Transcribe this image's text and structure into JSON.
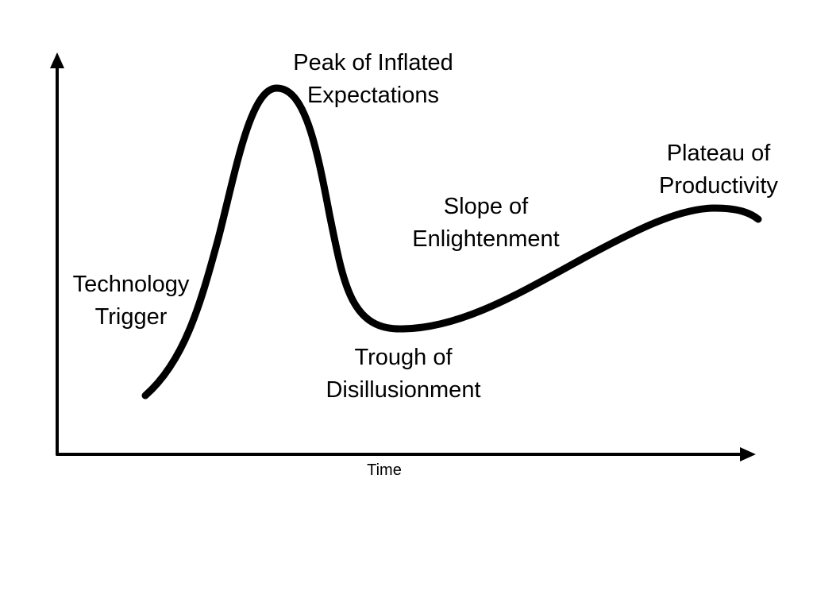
{
  "colors": {
    "background": "#ffffff",
    "ink": "#000000"
  },
  "x_axis": {
    "label": "Time"
  },
  "phases": [
    {
      "line1": "Technology",
      "line2": "Trigger"
    },
    {
      "line1": "Peak of Inflated",
      "line2": "Expectations"
    },
    {
      "line1": "Trough of",
      "line2": "Disillusionment"
    },
    {
      "line1": "Slope of",
      "line2": "Enlightenment"
    },
    {
      "line1": "Plateau of",
      "line2": "Productivity"
    }
  ]
}
